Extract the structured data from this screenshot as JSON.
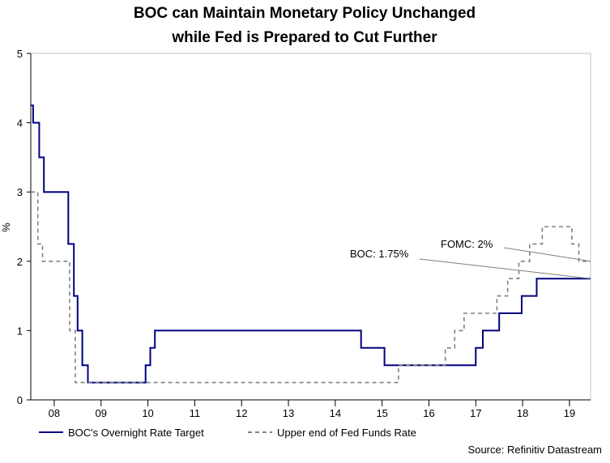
{
  "chart_data": {
    "type": "line",
    "title": [
      "BOC can Maintain Monetary Policy Unchanged",
      "while Fed is Prepared to Cut Further"
    ],
    "ylabel": "%",
    "ylim": [
      0,
      5
    ],
    "yticks": [
      0,
      1,
      2,
      3,
      4,
      5
    ],
    "xlim": [
      2007.5,
      2019.45
    ],
    "xtick_labels": [
      {
        "x": 2008.0,
        "label": "08"
      },
      {
        "x": 2009.0,
        "label": "09"
      },
      {
        "x": 2010.0,
        "label": "10"
      },
      {
        "x": 2011.0,
        "label": "11"
      },
      {
        "x": 2012.0,
        "label": "12"
      },
      {
        "x": 2013.0,
        "label": "13"
      },
      {
        "x": 2014.0,
        "label": "14"
      },
      {
        "x": 2015.0,
        "label": "15"
      },
      {
        "x": 2016.0,
        "label": "16"
      },
      {
        "x": 2017.0,
        "label": "17"
      },
      {
        "x": 2018.0,
        "label": "18"
      },
      {
        "x": 2019.0,
        "label": "19"
      }
    ],
    "year_boundaries": [
      2008,
      2009,
      2010,
      2011,
      2012,
      2013,
      2014,
      2015,
      2016,
      2017,
      2018,
      2019
    ],
    "series": [
      {
        "name": "BOC's Overnight Rate Target",
        "color": "#000080",
        "style": "solid",
        "step": true,
        "points": [
          [
            2007.5,
            4.25
          ],
          [
            2007.55,
            4.0
          ],
          [
            2007.68,
            3.5
          ],
          [
            2007.78,
            3.0
          ],
          [
            2008.3,
            2.25
          ],
          [
            2008.42,
            1.5
          ],
          [
            2008.5,
            1.0
          ],
          [
            2008.6,
            0.5
          ],
          [
            2008.72,
            0.25
          ],
          [
            2009.95,
            0.5
          ],
          [
            2010.05,
            0.75
          ],
          [
            2010.15,
            1.0
          ],
          [
            2014.55,
            0.75
          ],
          [
            2015.05,
            0.5
          ],
          [
            2017.0,
            0.75
          ],
          [
            2017.15,
            1.0
          ],
          [
            2017.5,
            1.25
          ],
          [
            2017.98,
            1.5
          ],
          [
            2018.3,
            1.75
          ],
          [
            2019.45,
            1.75
          ]
        ]
      },
      {
        "name": "Upper end of Fed Funds Rate",
        "color": "#808080",
        "style": "dashed",
        "step": true,
        "points": [
          [
            2007.5,
            3.0
          ],
          [
            2007.65,
            2.25
          ],
          [
            2007.75,
            2.0
          ],
          [
            2008.33,
            1.0
          ],
          [
            2008.45,
            0.25
          ],
          [
            2015.35,
            0.5
          ],
          [
            2016.35,
            0.75
          ],
          [
            2016.55,
            1.0
          ],
          [
            2016.75,
            1.25
          ],
          [
            2017.45,
            1.5
          ],
          [
            2017.68,
            1.75
          ],
          [
            2017.92,
            2.0
          ],
          [
            2018.15,
            2.25
          ],
          [
            2018.42,
            2.5
          ],
          [
            2019.05,
            2.25
          ],
          [
            2019.2,
            2.0
          ],
          [
            2019.45,
            2.0
          ]
        ]
      }
    ],
    "annotations": [
      {
        "text": "FOMC: 2%",
        "target": [
          2019.45,
          2.0
        ]
      },
      {
        "text": "BOC: 1.75%",
        "target": [
          2019.45,
          1.75
        ]
      }
    ],
    "legend": {
      "position": "bottom",
      "entries": [
        "BOC's Overnight Rate Target",
        "Upper end of Fed Funds Rate"
      ]
    },
    "source": "Source: Refinitiv Datastream",
    "grid": false
  }
}
